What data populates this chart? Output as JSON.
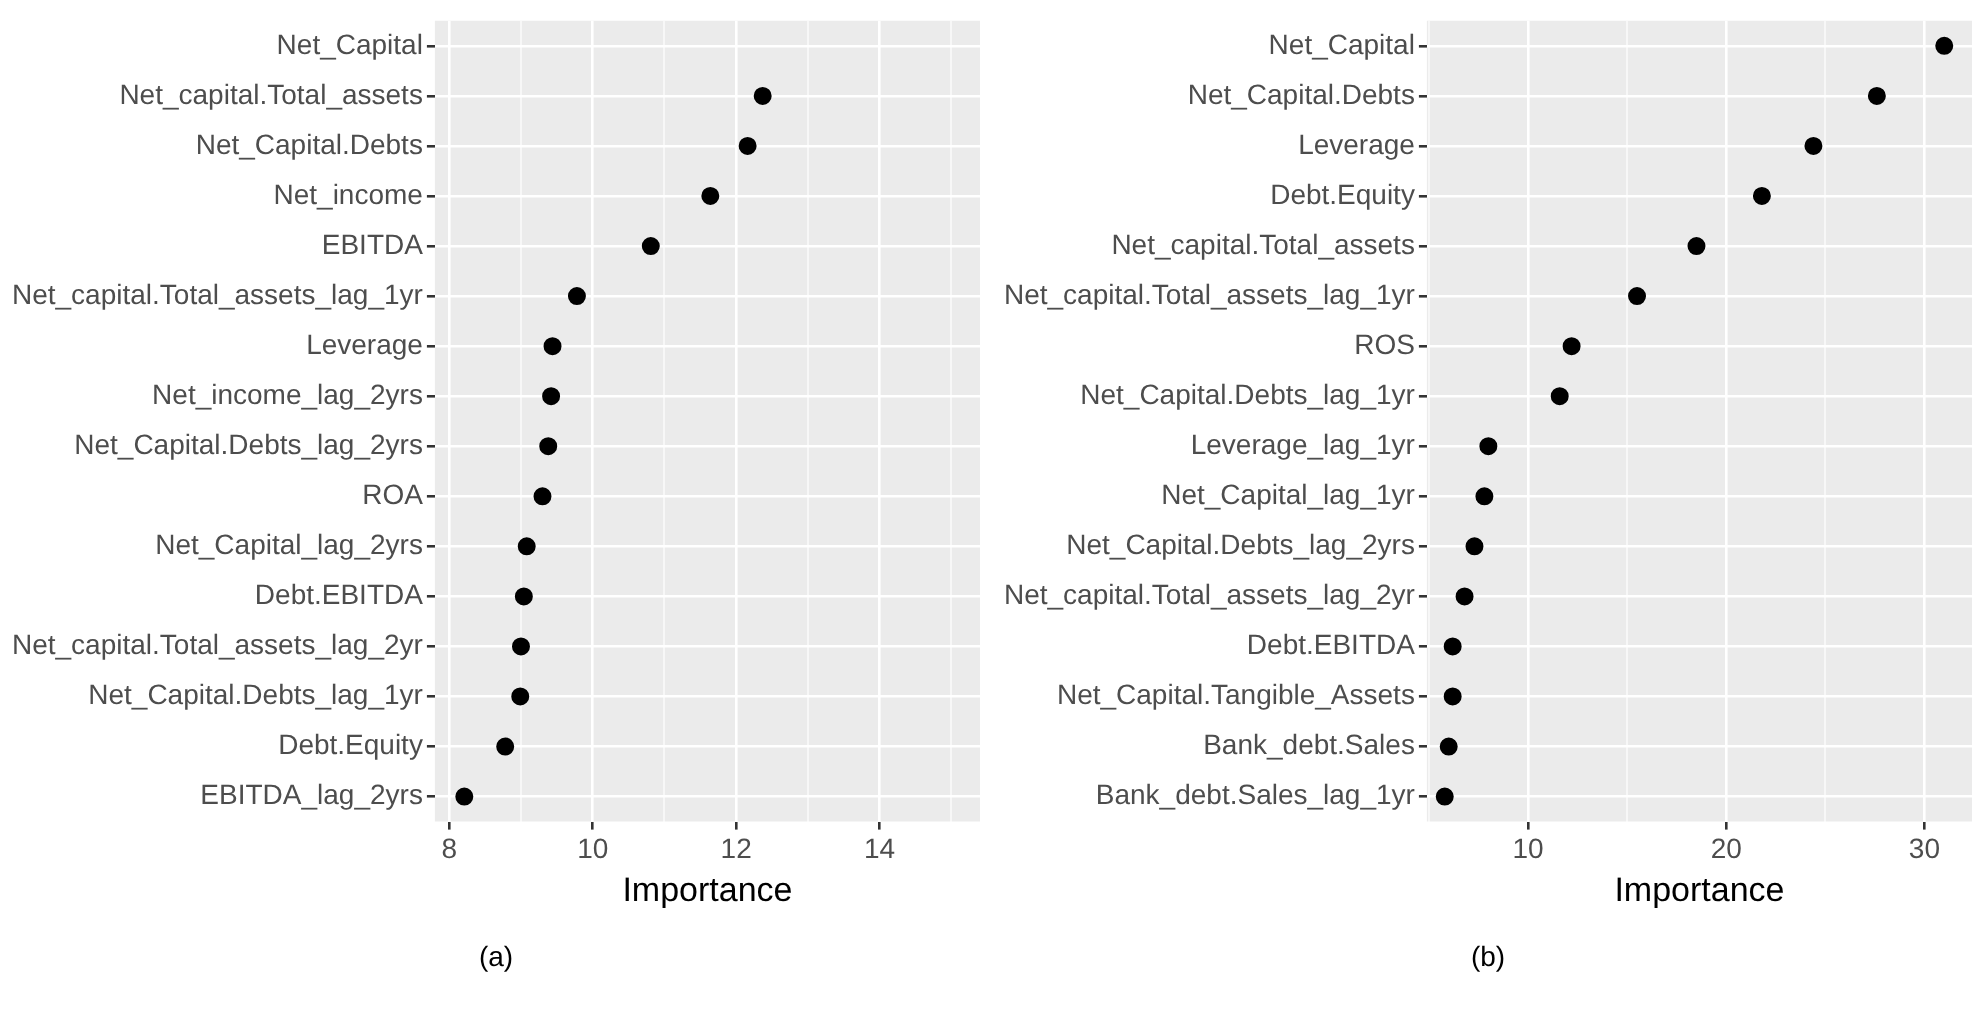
{
  "chart_data": [
    {
      "type": "scatter",
      "orientation": "horizontal",
      "color": "#000000",
      "marker": "circle",
      "grid": true,
      "legend": false,
      "xlabel": "Importance",
      "annotations": [
        "(a)"
      ],
      "categories": [
        "Net_Capital",
        "Net_capital.Total_assets",
        "Net_Capital.Debts",
        "Net_income",
        "EBITDA",
        "Net_capital.Total_assets_lag_1yr",
        "Leverage",
        "Net_income_lag_2yrs",
        "Net_Capital.Debts_lag_2yrs",
        "ROA",
        "Net_Capital_lag_2yrs",
        "Debt.EBITDA",
        "Net_capital.Total_assets_lag_2yr",
        "Net_Capital.Debts_lag_1yr",
        "Debt.Equity",
        "EBITDA_lag_2yrs"
      ],
      "values": [
        null,
        12.37,
        12.16,
        11.64,
        10.81,
        9.78,
        9.44,
        9.42,
        9.38,
        9.3,
        9.08,
        9.04,
        9.0,
        8.99,
        8.78,
        8.21
      ],
      "xlim": [
        7.8,
        15.4
      ],
      "xticks": [
        8,
        {
          "value": 9,
          "label": null
        },
        10,
        {
          "value": 11,
          "label": null
        },
        12,
        {
          "value": 13,
          "label": null
        },
        14,
        {
          "value": 15,
          "label": null
        }
      ]
    },
    {
      "type": "scatter",
      "orientation": "horizontal",
      "color": "#000000",
      "marker": "circle",
      "grid": true,
      "legend": false,
      "xlabel": "Importance",
      "annotations": [
        "(b)"
      ],
      "categories": [
        "Net_Capital",
        "Net_Capital.Debts",
        "Leverage",
        "Debt.Equity",
        "Net_capital.Total_assets",
        "Net_capital.Total_assets_lag_1yr",
        "ROS",
        "Net_Capital.Debts_lag_1yr",
        "Leverage_lag_1yr",
        "Net_Capital_lag_1yr",
        "Net_Capital.Debts_lag_2yrs",
        "Net_capital.Total_assets_lag_2yr",
        "Debt.EBITDA",
        "Net_Capital.Tangible_Assets",
        "Bank_debt.Sales",
        "Bank_debt.Sales_lag_1yr"
      ],
      "values": [
        31.0,
        27.6,
        24.4,
        21.8,
        18.5,
        15.5,
        12.2,
        11.6,
        8.0,
        7.8,
        7.3,
        6.8,
        6.2,
        6.2,
        6.0,
        5.8
      ],
      "xlim": [
        4.9,
        32.4
      ],
      "xticks": [
        {
          "value": 5,
          "label": null
        },
        10,
        {
          "value": 15,
          "label": null
        },
        20,
        {
          "value": 25,
          "label": null
        },
        30
      ]
    }
  ]
}
